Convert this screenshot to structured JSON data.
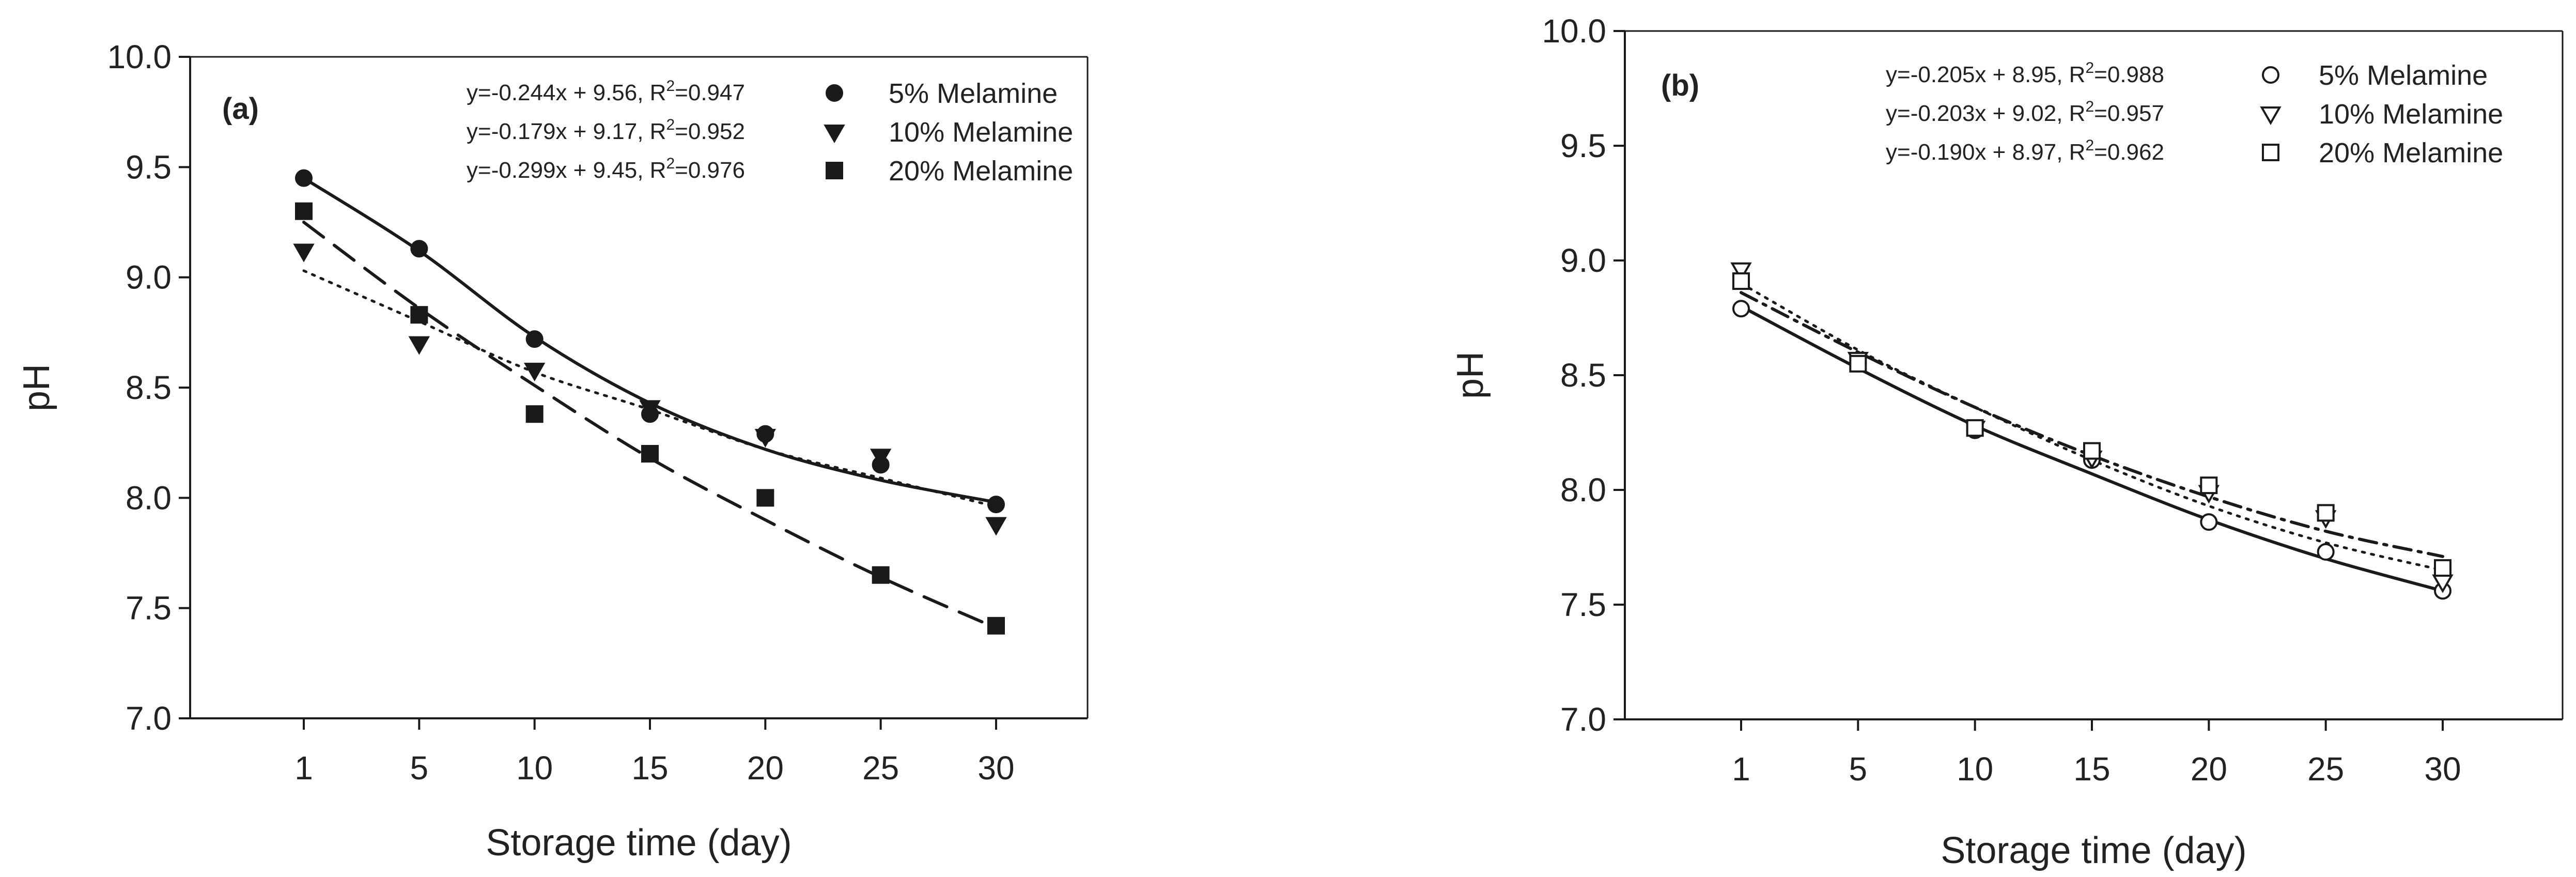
{
  "chart_data": [
    {
      "type": "scatter",
      "panel_label": "(a)",
      "xlabel": "Storage time (day)",
      "ylabel": "pH",
      "x_ticks": [
        "1",
        "5",
        "10",
        "15",
        "20",
        "25",
        "30"
      ],
      "y_ticks": [
        "7.0",
        "7.5",
        "8.0",
        "8.5",
        "9.0",
        "9.5",
        "10.0"
      ],
      "ylim": [
        7.0,
        10.0
      ],
      "x": [
        1,
        5,
        10,
        15,
        20,
        25,
        30
      ],
      "grid": false,
      "legend_position": "top-right",
      "series": [
        {
          "name": "5% Melamine",
          "marker": "circle-filled",
          "line_style": "solid",
          "equation": "y=-0.244x + 9.56, R²=0.947",
          "values": [
            9.45,
            9.13,
            8.72,
            8.38,
            8.29,
            8.15,
            7.97
          ],
          "fit": [
            9.45,
            9.12,
            8.73,
            8.43,
            8.22,
            8.08,
            7.98
          ]
        },
        {
          "name": "10% Melamine",
          "marker": "triangle-down-filled",
          "line_style": "dotted",
          "equation": "y=-0.179x + 9.17, R²=0.952",
          "values": [
            9.12,
            8.7,
            8.58,
            8.41,
            8.28,
            8.19,
            7.88
          ],
          "fit": [
            9.03,
            8.8,
            8.57,
            8.4,
            8.22,
            8.09,
            7.96
          ]
        },
        {
          "name": "20% Melamine",
          "marker": "square-filled",
          "line_style": "dashed",
          "equation": "y=-0.299x + 9.45, R²=0.976",
          "values": [
            9.3,
            8.83,
            8.38,
            8.2,
            8.0,
            7.65,
            7.42
          ],
          "fit": [
            9.25,
            8.86,
            8.51,
            8.18,
            7.9,
            7.64,
            7.41
          ]
        }
      ]
    },
    {
      "type": "scatter",
      "panel_label": "(b)",
      "xlabel": "Storage time (day)",
      "ylabel": "pH",
      "x_ticks": [
        "1",
        "5",
        "10",
        "15",
        "20",
        "25",
        "30"
      ],
      "y_ticks": [
        "7.0",
        "7.5",
        "8.0",
        "8.5",
        "9.0",
        "9.5",
        "10.0"
      ],
      "ylim": [
        7.0,
        10.0
      ],
      "x": [
        1,
        5,
        10,
        15,
        20,
        25,
        30
      ],
      "grid": false,
      "legend_position": "top-right",
      "series": [
        {
          "name": "5% Melamine",
          "marker": "circle-open",
          "line_style": "solid",
          "equation": "y=-0.205x + 8.95, R²=0.988",
          "values": [
            8.79,
            8.55,
            8.26,
            8.13,
            7.86,
            7.73,
            7.56
          ],
          "fit": [
            8.8,
            8.53,
            8.28,
            8.07,
            7.87,
            7.7,
            7.56
          ]
        },
        {
          "name": "10% Melamine",
          "marker": "triangle-down-open",
          "line_style": "dotted",
          "equation": "y=-0.203x + 9.02, R²=0.957",
          "values": [
            8.96,
            8.57,
            8.27,
            8.14,
            7.99,
            7.88,
            7.6
          ],
          "fit": [
            8.9,
            8.61,
            8.36,
            8.13,
            7.93,
            7.77,
            7.65
          ]
        },
        {
          "name": "20% Melamine",
          "marker": "square-open",
          "line_style": "dashdot",
          "equation": "y=-0.190x + 8.97, R²=0.962",
          "values": [
            8.91,
            8.55,
            8.27,
            8.17,
            8.02,
            7.9,
            7.66
          ],
          "fit": [
            8.86,
            8.6,
            8.36,
            8.15,
            7.97,
            7.82,
            7.71
          ]
        }
      ]
    }
  ]
}
